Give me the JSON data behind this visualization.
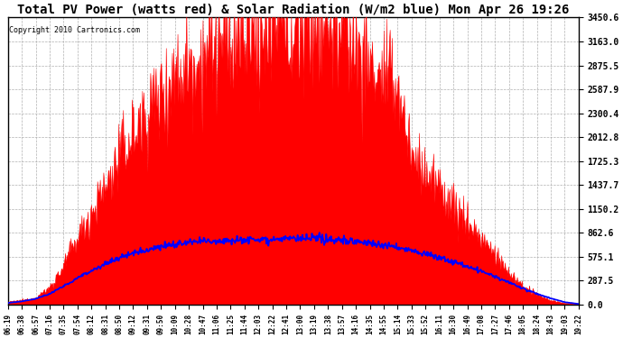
{
  "title": "Total PV Power (watts red) & Solar Radiation (W/m2 blue) Mon Apr 26 19:26",
  "copyright_text": "Copyright 2010 Cartronics.com",
  "yticks": [
    0.0,
    287.5,
    575.1,
    862.6,
    1150.2,
    1437.7,
    1725.3,
    2012.8,
    2300.4,
    2587.9,
    2875.5,
    3163.0,
    3450.6
  ],
  "ylim": [
    0,
    3450.6
  ],
  "xtick_labels": [
    "06:19",
    "06:38",
    "06:57",
    "07:16",
    "07:35",
    "07:54",
    "08:12",
    "08:31",
    "08:50",
    "09:12",
    "09:31",
    "09:50",
    "10:09",
    "10:28",
    "10:47",
    "11:06",
    "11:25",
    "11:44",
    "12:03",
    "12:22",
    "12:41",
    "13:00",
    "13:19",
    "13:38",
    "13:57",
    "14:16",
    "14:35",
    "14:55",
    "15:14",
    "15:33",
    "15:52",
    "16:11",
    "16:30",
    "16:49",
    "17:08",
    "17:27",
    "17:46",
    "18:05",
    "18:24",
    "18:43",
    "19:03",
    "19:22"
  ],
  "pv_color": "#ff0000",
  "solar_color": "#0000ff",
  "bg_color": "#ffffff",
  "plot_bg": "#ffffff",
  "grid_color": "#b0b0b0",
  "title_fontsize": 10,
  "pv_data": [
    30,
    50,
    80,
    200,
    450,
    800,
    1100,
    1400,
    1750,
    2050,
    2300,
    2550,
    2750,
    2900,
    3000,
    3100,
    3150,
    3200,
    3250,
    3300,
    3320,
    3350,
    3380,
    3360,
    3340,
    3100,
    2900,
    2700,
    2650,
    1800,
    1600,
    1400,
    1200,
    1000,
    800,
    600,
    380,
    220,
    120,
    50,
    15,
    3
  ],
  "solar_data": [
    20,
    40,
    70,
    130,
    220,
    320,
    410,
    490,
    560,
    620,
    665,
    700,
    725,
    745,
    760,
    770,
    778,
    782,
    785,
    788,
    790,
    792,
    790,
    785,
    775,
    760,
    740,
    715,
    685,
    650,
    610,
    565,
    515,
    460,
    400,
    335,
    265,
    195,
    130,
    75,
    30,
    8
  ],
  "noise_seed": 12345
}
